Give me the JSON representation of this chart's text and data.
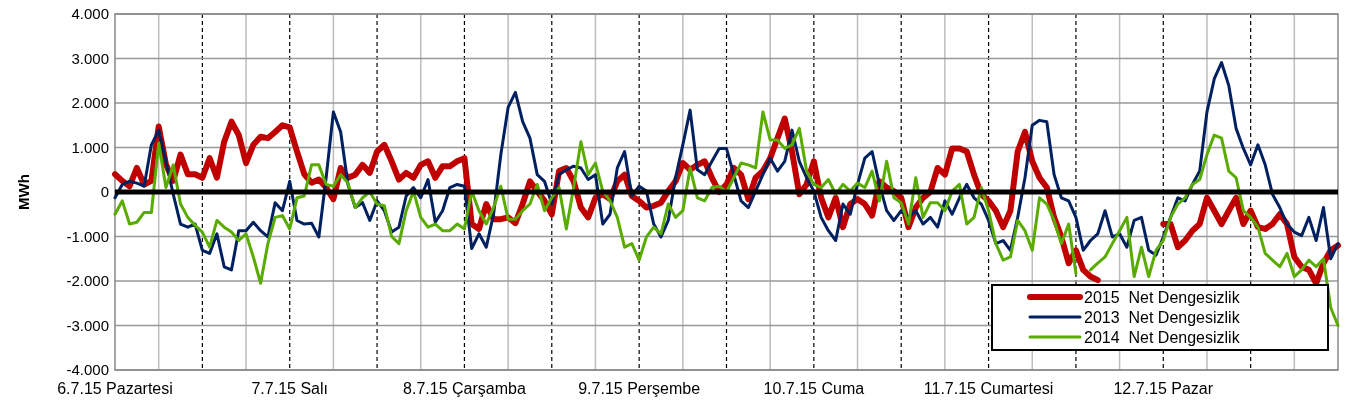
{
  "chart_data": {
    "type": "line",
    "ylabel": "MWh",
    "categories": [
      "6.7.15 Pazartesi",
      null,
      null,
      null,
      null,
      null,
      null,
      null,
      null,
      null,
      null,
      null,
      null,
      null,
      null,
      null,
      null,
      null,
      null,
      null,
      null,
      null,
      null,
      null,
      "7.7.15 Salı",
      null,
      null,
      null,
      null,
      null,
      null,
      null,
      null,
      null,
      null,
      null,
      null,
      null,
      null,
      null,
      null,
      null,
      null,
      null,
      null,
      null,
      null,
      null,
      "8.7.15 Çarşamba",
      null,
      null,
      null,
      null,
      null,
      null,
      null,
      null,
      null,
      null,
      null,
      null,
      null,
      null,
      null,
      null,
      null,
      null,
      null,
      null,
      null,
      null,
      null,
      "9.7.15 Perşembe",
      null,
      null,
      null,
      null,
      null,
      null,
      null,
      null,
      null,
      null,
      null,
      null,
      null,
      null,
      null,
      null,
      null,
      null,
      null,
      null,
      null,
      null,
      null,
      "10.7.15 Cuma",
      null,
      null,
      null,
      null,
      null,
      null,
      null,
      null,
      null,
      null,
      null,
      null,
      null,
      null,
      null,
      null,
      null,
      null,
      null,
      null,
      null,
      null,
      null,
      "11.7.15 Cumartesi",
      null,
      null,
      null,
      null,
      null,
      null,
      null,
      null,
      null,
      null,
      null,
      null,
      null,
      null,
      null,
      null,
      null,
      null,
      null,
      null,
      null,
      null,
      null,
      "12.7.15 Pazar",
      null,
      null,
      null,
      null,
      null,
      null,
      null,
      null,
      null,
      null,
      null,
      null,
      null,
      null,
      null,
      null,
      null,
      null,
      null,
      null,
      null,
      null,
      null,
      null
    ],
    "ylim": [
      -4000,
      4000
    ],
    "yticks": [
      {
        "value": -4000,
        "label": "-4.000"
      },
      {
        "value": -3000,
        "label": "-3.000"
      },
      {
        "value": -2000,
        "label": "-2.000"
      },
      {
        "value": -1000,
        "label": "-1.000"
      },
      0,
      {
        "value": 1000,
        "label": "1.000"
      },
      {
        "value": 2000,
        "label": "2.000"
      },
      {
        "value": 3000,
        "label": "3.000"
      },
      {
        "value": 4000,
        "label": "4.000"
      }
    ],
    "grid": true,
    "legend": "bottom right",
    "line_style": "solid",
    "marker": "none",
    "ref_lines": [
      {
        "axis": "y",
        "value": 0,
        "color": "#000000",
        "line_style": "solid"
      }
    ],
    "series": [
      {
        "name": "2015  Net Dengesizlik",
        "color": "#c00000",
        "values": [
          400,
          250,
          130,
          540,
          170,
          250,
          1470,
          620,
          250,
          840,
          400,
          400,
          320,
          760,
          320,
          1130,
          1580,
          1280,
          650,
          1060,
          1240,
          1210,
          1350,
          1500,
          1450,
          910,
          400,
          210,
          280,
          100,
          -160,
          540,
          320,
          390,
          610,
          430,
          910,
          1060,
          690,
          280,
          430,
          320,
          610,
          690,
          320,
          580,
          580,
          690,
          760,
          -720,
          -830,
          -270,
          -610,
          -610,
          -570,
          -700,
          -270,
          240,
          20,
          -200,
          -500,
          470,
          540,
          240,
          -350,
          -570,
          -130,
          -50,
          -160,
          240,
          390,
          -90,
          -200,
          -350,
          -310,
          -240,
          20,
          240,
          650,
          500,
          610,
          690,
          320,
          0,
          170,
          540,
          390,
          -160,
          320,
          470,
          760,
          1210,
          1650,
          910,
          -50,
          170,
          690,
          -130,
          -570,
          -130,
          -790,
          -270,
          -160,
          -270,
          -530,
          240,
          100,
          20,
          -130,
          -790,
          -350,
          -130,
          0,
          540,
          390,
          980,
          980,
          910,
          390,
          -50,
          -200,
          -420,
          -790,
          -420,
          910,
          1350,
          690,
          320,
          100,
          -570,
          -1010,
          -1600,
          -1310,
          -1750,
          -1900,
          -1980,
          null,
          null,
          null,
          null,
          null,
          null,
          null,
          null,
          -720,
          -720,
          -1240,
          -1090,
          -870,
          -720,
          -130,
          -420,
          -720,
          -420,
          -130,
          -720,
          -420,
          -790,
          -830,
          -720,
          -500,
          -720,
          -1460,
          -1680,
          -1750,
          -2050,
          -1600,
          -1310,
          -1200
        ]
      },
      {
        "name": "2013  Net Dengesizlik",
        "color": "#002060",
        "values": [
          -130,
          170,
          240,
          200,
          130,
          1060,
          1390,
          690,
          -50,
          -720,
          -790,
          -720,
          -1310,
          -1380,
          -940,
          -1680,
          -1750,
          -870,
          -870,
          -680,
          -870,
          -1010,
          -240,
          -420,
          240,
          -640,
          -720,
          -700,
          -1010,
          320,
          1800,
          1350,
          170,
          -350,
          -240,
          -640,
          -200,
          -420,
          -900,
          -790,
          -90,
          100,
          -130,
          280,
          -680,
          -420,
          100,
          170,
          130,
          -1270,
          -940,
          -1240,
          -500,
          840,
          1900,
          2240,
          1580,
          1210,
          390,
          240,
          -270,
          390,
          500,
          580,
          540,
          280,
          390,
          -720,
          -500,
          540,
          910,
          -90,
          130,
          20,
          -720,
          -1010,
          -640,
          320,
          1060,
          1840,
          500,
          390,
          690,
          980,
          980,
          390,
          -200,
          -350,
          20,
          390,
          760,
          470,
          690,
          1390,
          690,
          320,
          20,
          -570,
          -870,
          -1090,
          -270,
          -500,
          170,
          760,
          910,
          170,
          -420,
          -640,
          -420,
          -570,
          -420,
          -720,
          -570,
          -790,
          -200,
          -500,
          -130,
          170,
          -130,
          -270,
          -640,
          -1160,
          -1090,
          -1310,
          -570,
          320,
          1500,
          1610,
          1580,
          390,
          -130,
          -200,
          -570,
          -1310,
          -1090,
          -940,
          -420,
          -1010,
          -940,
          -1240,
          -640,
          -570,
          -1310,
          -1420,
          -1010,
          -570,
          -130,
          -200,
          170,
          470,
          1800,
          2540,
          2910,
          2390,
          1430,
          980,
          610,
          1060,
          610,
          -50,
          -350,
          -720,
          -900,
          -980,
          -570,
          -1090,
          -350,
          -1500,
          -1160
        ]
      },
      {
        "name": "2014  Net Dengesizlik",
        "color": "#5aab00",
        "values": [
          -500,
          -200,
          -720,
          -680,
          -460,
          -460,
          1100,
          100,
          610,
          -270,
          -570,
          -750,
          -900,
          -1240,
          -640,
          -790,
          -900,
          -1090,
          -940,
          -1460,
          -2050,
          -1160,
          -570,
          -530,
          -830,
          -130,
          -90,
          610,
          610,
          170,
          130,
          390,
          200,
          -350,
          -130,
          0,
          -270,
          -310,
          -1000,
          -1160,
          -420,
          20,
          -570,
          -790,
          -720,
          -870,
          -870,
          -720,
          -830,
          20,
          -420,
          -720,
          -350,
          130,
          -610,
          -610,
          -420,
          -270,
          170,
          -420,
          -130,
          100,
          -830,
          100,
          1130,
          390,
          650,
          20,
          -200,
          -570,
          -1240,
          -1160,
          -1530,
          -1010,
          -790,
          -940,
          -270,
          -570,
          -420,
          540,
          -130,
          -200,
          100,
          130,
          0,
          320,
          650,
          610,
          540,
          1800,
          1170,
          1170,
          980,
          1060,
          1430,
          470,
          170,
          100,
          280,
          -50,
          170,
          20,
          200,
          100,
          470,
          -200,
          690,
          -130,
          -240,
          -720,
          320,
          -570,
          -240,
          -240,
          -420,
          20,
          170,
          -720,
          -570,
          100,
          -420,
          -1160,
          -1530,
          -1460,
          -640,
          -870,
          -1310,
          -130,
          -270,
          -640,
          -1160,
          -720,
          -1830,
          null,
          -1750,
          -1600,
          -1460,
          -1160,
          -870,
          -570,
          -1900,
          -1240,
          -1900,
          -1310,
          -1090,
          -570,
          -270,
          -130,
          170,
          280,
          840,
          1280,
          1210,
          470,
          320,
          -420,
          -570,
          -790,
          -1380,
          -1530,
          -1680,
          -1380,
          -1900,
          -1750,
          -1530,
          -1680,
          -1500,
          -2600,
          -3000
        ]
      }
    ]
  }
}
